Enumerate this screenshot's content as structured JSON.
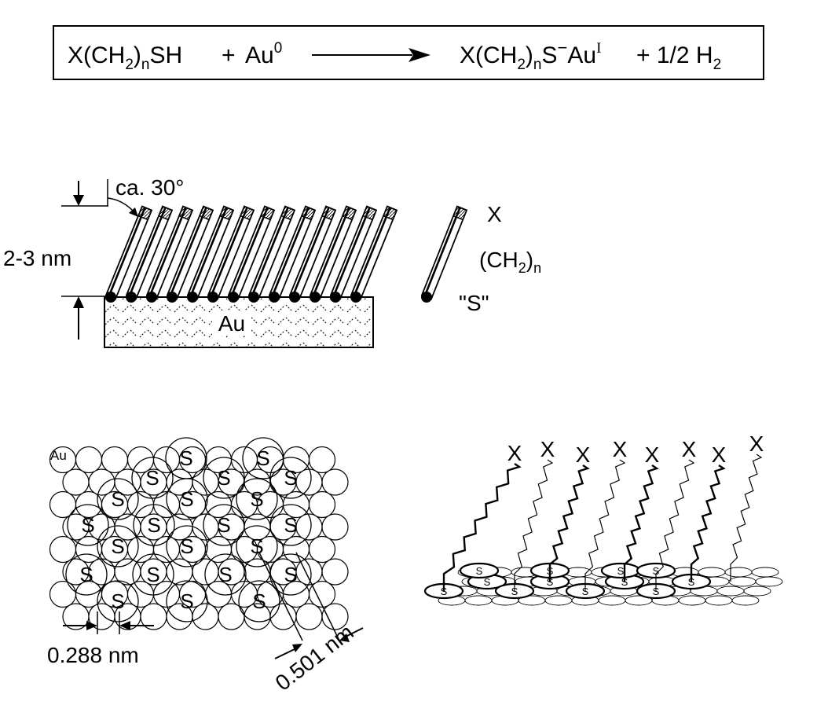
{
  "equation": {
    "reactant_thiol": {
      "base": "X(CH",
      "sub1": "2",
      "mid": ")",
      "sub2": "n",
      "tail": "SH"
    },
    "plus1": "+",
    "reactant_gold": {
      "base": "Au",
      "sup": "0"
    },
    "product_thiolate": {
      "base": "X(CH",
      "sub1": "2",
      "mid": ")",
      "sub2": "n",
      "s": "S",
      "sup_minus": "−",
      "au": "Au",
      "sup_i": "I"
    },
    "plus2": "+ 1/2 H",
    "h2_sub": "2"
  },
  "monolayer": {
    "tilt_label": "ca. 30°",
    "thickness_label": "2-3 nm",
    "substrate_label": "Au",
    "molecule": {
      "terminal_group": "X",
      "chain_base": "(CH",
      "chain_sub1": "2",
      "chain_mid": ")",
      "chain_sub2": "n",
      "headgroup": "\"S\""
    }
  },
  "lattice": {
    "au_label": "Au",
    "sulfur_label": "S",
    "spacing_au": "0.288 nm",
    "spacing_s": "0.501 nm"
  },
  "perspective": {
    "terminal_group": "X",
    "sulfur_label": "S"
  }
}
